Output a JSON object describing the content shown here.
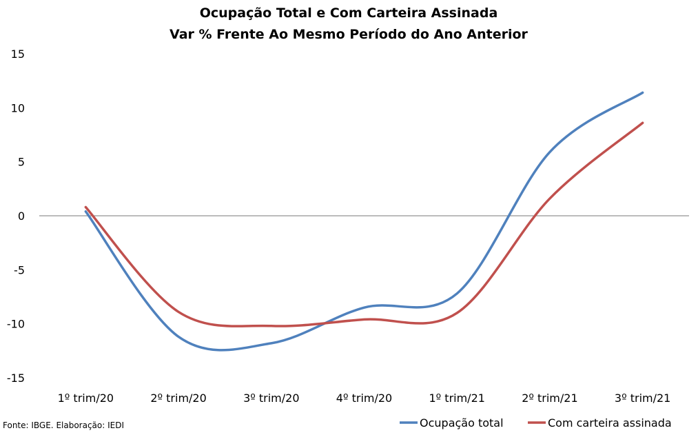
{
  "chart_data": {
    "type": "line",
    "title": "Ocupação Total e Com Carteira Assinada",
    "subtitle": "Var % Frente Ao Mesmo Período do Ano Anterior",
    "categories": [
      "1º trim/20",
      "2º trim/20",
      "3º trim/20",
      "4º trim/20",
      "1º trim/21",
      "2º trim/21",
      "3º trim/21"
    ],
    "series": [
      {
        "name": "Ocupação total",
        "color": "#4F81BD",
        "values": [
          0.4,
          -11.2,
          -11.8,
          -8.5,
          -7.2,
          5.9,
          11.4
        ]
      },
      {
        "name": "Com carteira assinada",
        "color": "#C0504D",
        "values": [
          0.8,
          -8.9,
          -10.2,
          -9.6,
          -9.0,
          1.6,
          8.6
        ]
      }
    ],
    "ylim": [
      -15,
      15
    ],
    "yticks": [
      15,
      10,
      5,
      0,
      -5,
      -10,
      -15
    ],
    "grid": false,
    "legend": "bottom-right"
  },
  "footer": {
    "source": "Fonte: IBGE. Elaboração: IEDI"
  }
}
